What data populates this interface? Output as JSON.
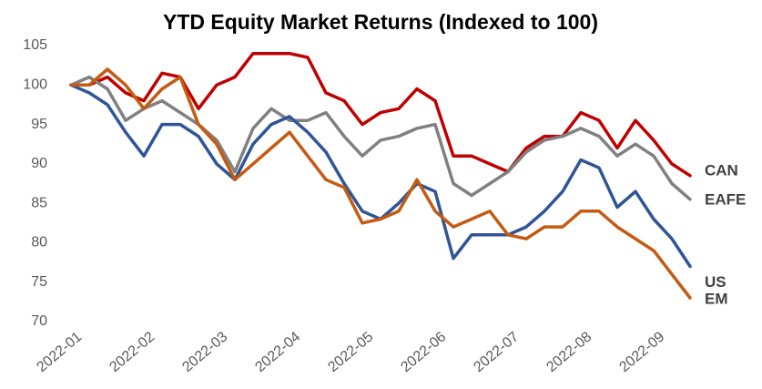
{
  "chart_data": {
    "type": "line",
    "title": "YTD Equity Market Returns (Indexed to 100)",
    "categories": [
      "2022-01",
      null,
      null,
      null,
      "2022-02",
      null,
      null,
      null,
      "2022-03",
      null,
      null,
      null,
      "2022-04",
      null,
      null,
      null,
      "2022-05",
      null,
      null,
      null,
      "2022-06",
      null,
      null,
      null,
      "2022-07",
      null,
      null,
      null,
      "2022-08",
      null,
      null,
      null,
      "2022-09",
      null,
      null
    ],
    "series": [
      {
        "name": "CAN",
        "color": "#c00000",
        "values": [
          100,
          100,
          101,
          99,
          98,
          101.5,
          101,
          97,
          100,
          101,
          104,
          104,
          104,
          103.5,
          99,
          98,
          95,
          96.5,
          97,
          99.5,
          98,
          91,
          91,
          90,
          89,
          92,
          93.5,
          93.5,
          96.5,
          95.5,
          92,
          95.5,
          93,
          90,
          88.5
        ]
      },
      {
        "name": "EAFE",
        "color": "#808080",
        "values": [
          100,
          101,
          99.5,
          95.5,
          97,
          98,
          96.5,
          95,
          93,
          89,
          94.5,
          97,
          95.5,
          95.5,
          96.5,
          93.5,
          91,
          93,
          93.5,
          94.5,
          95,
          87.5,
          86,
          87.5,
          89,
          91.5,
          93,
          93.5,
          94.5,
          93.5,
          91,
          92.5,
          91,
          87.5,
          85.5
        ]
      },
      {
        "name": "US",
        "color": "#2f5597",
        "values": [
          100,
          99,
          97.5,
          94,
          91,
          95,
          95,
          93.5,
          90,
          88,
          92.5,
          95,
          96,
          94,
          91.5,
          87.5,
          84,
          83,
          85,
          87.5,
          86.5,
          78,
          81,
          81,
          81,
          82,
          84,
          86.5,
          90.5,
          89.5,
          84.5,
          86.5,
          83,
          80.5,
          77
        ]
      },
      {
        "name": "EM",
        "color": "#c55a11",
        "values": [
          100,
          100,
          102,
          100,
          97,
          99.5,
          101,
          95,
          92.5,
          88,
          90,
          92,
          94,
          91,
          88,
          87,
          82.5,
          83,
          84,
          88,
          84,
          82,
          83,
          84,
          81,
          80.5,
          82,
          82,
          84,
          84,
          82,
          80.5,
          79,
          76,
          73
        ]
      }
    ],
    "ylim": [
      70,
      105
    ],
    "yticks": [
      70,
      75,
      80,
      85,
      90,
      95,
      100,
      105
    ],
    "grid": false
  }
}
